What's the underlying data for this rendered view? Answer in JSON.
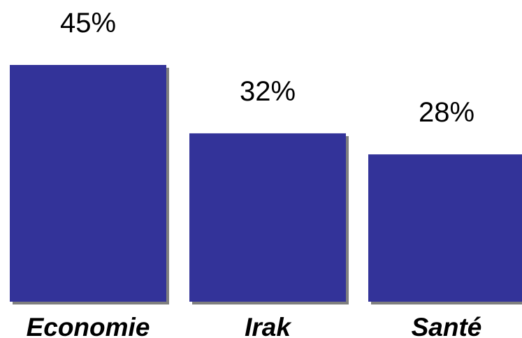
{
  "chart_data": {
    "type": "bar",
    "categories": [
      "Economie",
      "Irak",
      "Santé"
    ],
    "values": [
      45,
      32,
      28
    ],
    "value_labels": [
      "45%",
      "32%",
      "28%"
    ],
    "title": "",
    "xlabel": "",
    "ylabel": "",
    "ylim": [
      0,
      45
    ],
    "grid": false,
    "legend": "none",
    "colors": {
      "bar": "#333399",
      "bar_shadow": "#7f7f7f"
    }
  }
}
